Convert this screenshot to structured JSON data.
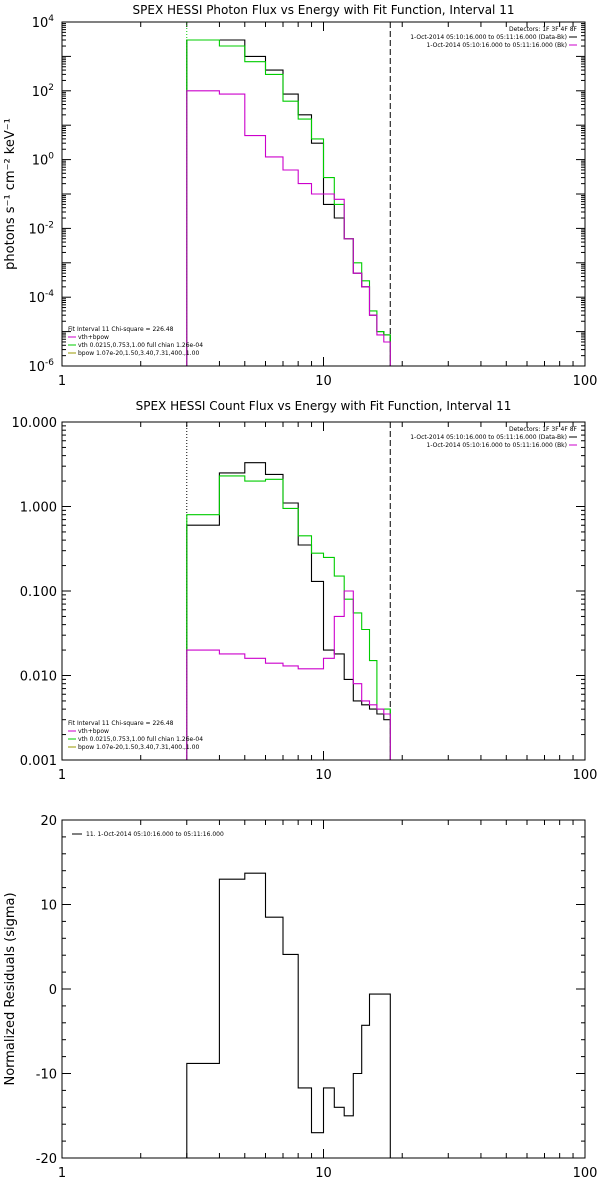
{
  "colors": {
    "data_bk": "#000000",
    "vth_bpow": "#cc00cc",
    "vth": "#00cc00",
    "bpow": "#999900",
    "bk": "#cc00cc",
    "axis": "#000000"
  },
  "chart_data": [
    {
      "id": "photon",
      "type": "line",
      "title": "SPEX HESSI Photon Flux vs Energy with Fit Function, Interval 11",
      "xlabel": "",
      "ylabel": "photons s⁻¹ cm⁻² keV⁻¹",
      "xscale": "log",
      "yscale": "log",
      "xlim": [
        1,
        100
      ],
      "ylim": [
        1e-06,
        10000
      ],
      "xticks": [
        {
          "v": 1,
          "label": "1"
        },
        {
          "v": 10,
          "label": "10"
        },
        {
          "v": 100,
          "label": "100"
        }
      ],
      "yticks": [
        {
          "v": 10000,
          "base": "10",
          "exp": "4"
        },
        {
          "v": 100,
          "base": "10",
          "exp": "2"
        },
        {
          "v": 1,
          "base": "10",
          "exp": "0"
        },
        {
          "v": 0.01,
          "base": "10",
          "exp": "-2"
        },
        {
          "v": 0.0001,
          "base": "10",
          "exp": "-4"
        },
        {
          "v": 1e-06,
          "base": "10",
          "exp": "-6"
        }
      ],
      "vlines": [
        {
          "x": 3,
          "style": "dotted",
          "color": "#00cc00"
        },
        {
          "x": 18,
          "style": "dashed",
          "color": "#000000"
        }
      ],
      "legend_right": {
        "header": "Detectors: 1F 3F 4F 8F",
        "entries": [
          {
            "text": "1-Oct-2014 05:10:16.000 to 05:11:16.000 (Data-Bk)",
            "color": "#000000"
          },
          {
            "text": "1-Oct-2014 05:10:16.000 to 05:11:16.000 (Bk)",
            "color": "#cc00cc"
          }
        ]
      },
      "legend_left": {
        "header": "Fit Interval 11   Chi-square = 226.48",
        "entries": [
          {
            "text": "vth+bpow",
            "color": "#cc00cc"
          },
          {
            "text": "vth 0.0215,0.753,1.00  full chian 1.26e-04",
            "color": "#00cc00"
          },
          {
            "text": "bpow 1.07e-20,1.50,3.40,7.31,400.,1.00",
            "color": "#999900"
          }
        ]
      },
      "series": [
        {
          "name": "1-Oct-2014 05:10:16.000 to 05:11:16.000 (Data-Bk)",
          "color": "#000000",
          "edges": [
            3,
            4,
            5,
            6,
            7,
            8,
            9,
            10,
            11,
            12,
            13,
            14,
            15,
            16,
            17,
            18
          ],
          "values": [
            3000,
            3000,
            1000,
            400,
            80,
            20,
            3,
            0.05,
            0.02,
            0.005,
            0.0005,
            0.0002,
            3e-05,
            1e-05,
            8e-06
          ]
        },
        {
          "name": "vth",
          "color": "#00cc00",
          "edges": [
            3,
            4,
            5,
            6,
            7,
            8,
            9,
            10,
            11,
            12,
            13,
            14,
            15,
            16,
            17,
            18
          ],
          "values": [
            3000,
            2000,
            700,
            300,
            50,
            15,
            4,
            0.3,
            0.05,
            0.005,
            0.001,
            0.0003,
            4e-05,
            1e-05,
            8e-06
          ]
        },
        {
          "name": "1-Oct-2014 05:10:16.000 to 05:11:16.000 (Bk)",
          "color": "#cc00cc",
          "edges": [
            3,
            4,
            5,
            6,
            7,
            8,
            9,
            10,
            11,
            12,
            13,
            14,
            15,
            16,
            17,
            18
          ],
          "values": [
            100,
            80,
            5,
            1.2,
            0.5,
            0.2,
            0.1,
            0.1,
            0.07,
            0.005,
            0.0005,
            0.0002,
            3e-05,
            8e-06,
            5e-06
          ]
        }
      ]
    },
    {
      "id": "count",
      "type": "line",
      "title": "SPEX HESSI Count Flux vs Energy with Fit Function, Interval 11",
      "xlabel": "",
      "ylabel": "",
      "xscale": "log",
      "yscale": "log",
      "xlim": [
        1,
        100
      ],
      "ylim": [
        0.001,
        10
      ],
      "xticks": [
        {
          "v": 1,
          "label": "1"
        },
        {
          "v": 10,
          "label": "10"
        },
        {
          "v": 100,
          "label": "100"
        }
      ],
      "yticks": [
        {
          "v": 10,
          "label": "10.000"
        },
        {
          "v": 1,
          "label": "1.000"
        },
        {
          "v": 0.1,
          "label": "0.100"
        },
        {
          "v": 0.01,
          "label": "0.010"
        },
        {
          "v": 0.001,
          "label": "0.001"
        }
      ],
      "vlines": [
        {
          "x": 3,
          "style": "dotted",
          "color": "#000000"
        },
        {
          "x": 18,
          "style": "dashed",
          "color": "#000000"
        }
      ],
      "legend_right": {
        "header": "Detectors: 1F 3F 4F 8F",
        "entries": [
          {
            "text": "1-Oct-2014 05:10:16.000 to 05:11:16.000 (Data-Bk)",
            "color": "#000000"
          },
          {
            "text": "1-Oct-2014 05:10:16.000 to 05:11:16.000 (Bk)",
            "color": "#cc00cc"
          }
        ]
      },
      "legend_left": {
        "header": "Fit Interval 11   Chi-square = 226.48",
        "entries": [
          {
            "text": "vth+bpow",
            "color": "#cc00cc"
          },
          {
            "text": "vth 0.0215,0.753,1.00  full chian 1.26e-04",
            "color": "#00cc00"
          },
          {
            "text": "bpow 1.07e-20,1.50,3.40,7.31,400.,1.00",
            "color": "#999900"
          }
        ]
      },
      "series": [
        {
          "name": "1-Oct-2014 05:10:16.000 to 05:11:16.000 (Data-Bk)",
          "color": "#000000",
          "edges": [
            3,
            4,
            5,
            6,
            7,
            8,
            9,
            10,
            11,
            12,
            13,
            14,
            15,
            16,
            17,
            18
          ],
          "values": [
            0.6,
            2.5,
            3.3,
            2.4,
            1.1,
            0.35,
            0.13,
            0.02,
            0.018,
            0.009,
            0.005,
            0.0045,
            0.004,
            0.0035,
            0.003
          ]
        },
        {
          "name": "vth",
          "color": "#00cc00",
          "edges": [
            3,
            4,
            5,
            6,
            7,
            8,
            9,
            10,
            11,
            12,
            13,
            14,
            15,
            16,
            17,
            18
          ],
          "values": [
            0.8,
            2.3,
            2.0,
            2.1,
            0.95,
            0.45,
            0.28,
            0.25,
            0.15,
            0.08,
            0.055,
            0.035,
            0.015,
            0.004,
            0.004
          ]
        },
        {
          "name": "1-Oct-2014 05:10:16.000 to 05:11:16.000 (Bk)",
          "color": "#cc00cc",
          "edges": [
            3,
            4,
            5,
            6,
            7,
            8,
            9,
            10,
            11,
            12,
            13,
            14,
            15,
            16,
            17,
            18
          ],
          "values": [
            0.02,
            0.018,
            0.016,
            0.014,
            0.013,
            0.012,
            0.012,
            0.016,
            0.05,
            0.1,
            0.008,
            0.005,
            0.0045,
            0.004,
            0.0035
          ]
        }
      ]
    },
    {
      "id": "residuals",
      "type": "line",
      "title": "",
      "xlabel": "",
      "ylabel": "Normalized Residuals (sigma)",
      "xscale": "log",
      "yscale": "linear",
      "xlim": [
        1,
        100
      ],
      "ylim": [
        -20,
        20
      ],
      "xticks": [
        {
          "v": 1,
          "label": "1"
        },
        {
          "v": 10,
          "label": "10"
        },
        {
          "v": 100,
          "label": "100"
        }
      ],
      "yticks": [
        {
          "v": 20,
          "label": "20"
        },
        {
          "v": 10,
          "label": "10"
        },
        {
          "v": 0,
          "label": "0"
        },
        {
          "v": -10,
          "label": "-10"
        },
        {
          "v": -20,
          "label": "-20"
        }
      ],
      "vlines": [],
      "legend_right": null,
      "legend_left": null,
      "legend_top": {
        "entries": [
          {
            "text": "11.  1-Oct-2014 05:10:16.000 to 05:11:16.000",
            "color": "#000000"
          }
        ]
      },
      "series": [
        {
          "name": "11.  1-Oct-2014 05:10:16.000 to 05:11:16.000",
          "color": "#000000",
          "edges": [
            3,
            4,
            5,
            6,
            7,
            8,
            9,
            10,
            11,
            12,
            13,
            14,
            15,
            16,
            17,
            18
          ],
          "values": [
            -8.8,
            13.0,
            13.7,
            8.5,
            4.1,
            -11.7,
            -17.0,
            -11.7,
            -14.0,
            -15.0,
            -10.0,
            -4.3,
            -0.6,
            -0.6,
            -0.6
          ],
          "drop_to": -20
        }
      ]
    }
  ]
}
